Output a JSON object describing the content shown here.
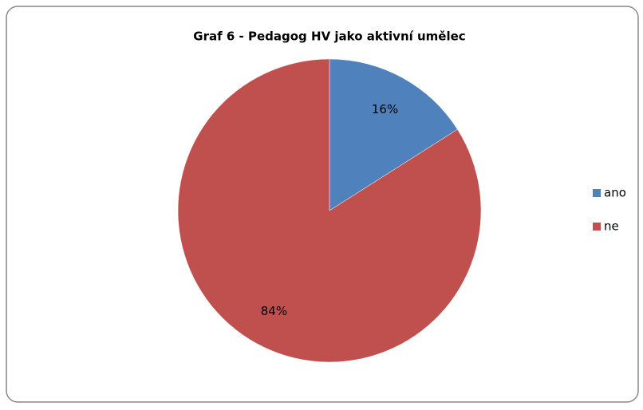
{
  "chart_data": {
    "type": "pie",
    "title": "Graf 6 - Pedagog HV jako aktivní umělec",
    "categories": [
      "ano",
      "ne"
    ],
    "values": [
      16,
      84
    ],
    "value_labels": [
      "16%",
      "84%"
    ],
    "colors": [
      "#4f81bd",
      "#c0504d"
    ],
    "legend": "right"
  }
}
